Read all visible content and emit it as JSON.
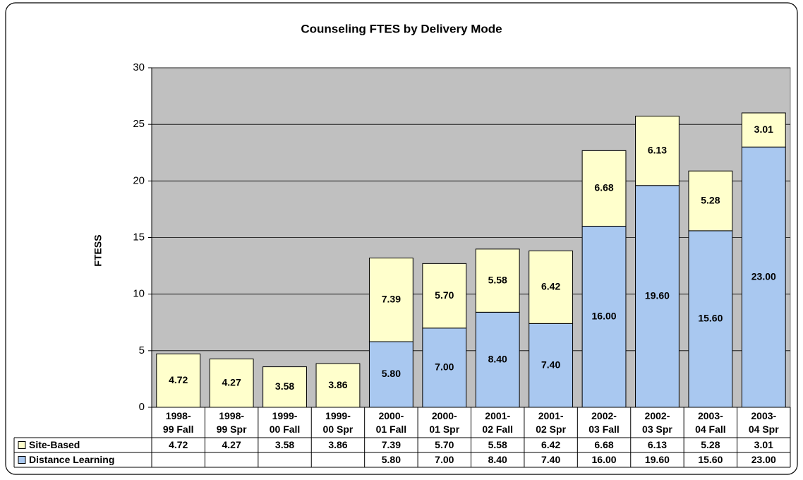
{
  "chart_data": {
    "type": "stacked_bar",
    "title": "Counseling FTES by Delivery Mode",
    "y_label": "FTESS",
    "categories": [
      "1998-99 Fall",
      "1998-99 Spr",
      "1999-00 Fall",
      "1999-00 Spr",
      "2000-01 Fall",
      "2000-01 Spr",
      "2001-02 Fall",
      "2001-02 Spr",
      "2002-03 Fall",
      "2002-03 Spr",
      "2003-04 Fall",
      "2003-04 Spr"
    ],
    "series": [
      {
        "name": "Site-Based",
        "color": "#ffffcc",
        "values": [
          4.72,
          4.27,
          3.58,
          3.86,
          7.39,
          5.7,
          5.58,
          6.42,
          6.68,
          6.13,
          5.28,
          3.01
        ],
        "value_labels": [
          "4.72",
          "4.27",
          "3.58",
          "3.86",
          "7.39",
          "5.70",
          "5.58",
          "6.42",
          "6.68",
          "6.13",
          "5.28",
          "3.01"
        ]
      },
      {
        "name": "Distance Learning",
        "color": "#a9c8f0",
        "values": [
          null,
          null,
          null,
          null,
          5.8,
          7.0,
          8.4,
          7.4,
          16.0,
          19.6,
          15.6,
          23.0
        ],
        "value_labels": [
          null,
          null,
          null,
          null,
          "5.80",
          "7.00",
          "8.40",
          "7.40",
          "16.00",
          "19.60",
          "15.60",
          "23.00"
        ]
      }
    ],
    "stack_order": "Distance Learning below Site-Based",
    "ylim": [
      0,
      30
    ],
    "yticks": [
      0,
      5,
      10,
      15,
      20,
      25,
      30
    ],
    "grid": true,
    "plot_background": "#c0c0c0"
  }
}
